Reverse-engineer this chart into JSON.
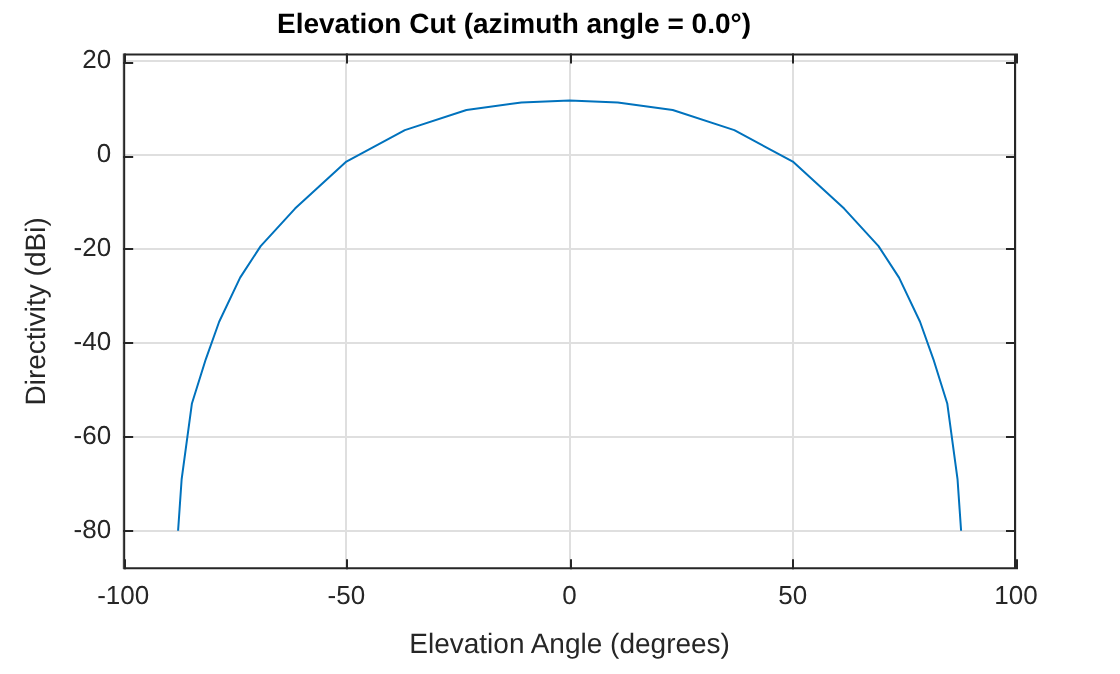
{
  "chart_data": {
    "type": "line",
    "title": "Elevation Cut (azimuth angle = 0.0°)",
    "xlabel": "Elevation Angle (degrees)",
    "ylabel": "Directivity (dBi)",
    "x": [
      -87.7,
      -86.9,
      -84.6,
      -81.5,
      -78.5,
      -73.8,
      -69.2,
      -61.5,
      -50,
      -36.9,
      -23.1,
      -10.8,
      0,
      10.8,
      23.1,
      36.9,
      50,
      61.5,
      69.2,
      73.8,
      78.5,
      81.5,
      84.6,
      86.9,
      87.7
    ],
    "series": [
      {
        "color": "#0072bd",
        "values": [
          -80,
          -69,
          -52.9,
          -43.5,
          -35.5,
          -26.1,
          -19.4,
          -11.4,
          -1.4,
          5.3,
          9.6,
          11.2,
          11.6,
          11.2,
          9.6,
          5.3,
          -1.4,
          -11.4,
          -19.4,
          -26.1,
          -35.5,
          -43.5,
          -52.9,
          -69,
          -80
        ]
      }
    ],
    "xlim": [
      -100,
      100
    ],
    "xticks": [
      -100,
      -50,
      0,
      50,
      100
    ],
    "ylim": [
      -88.2,
      21.6
    ],
    "yticks": [
      -80,
      -60,
      -40,
      -20,
      0,
      20
    ],
    "grid": true,
    "legend": false,
    "marker": "none",
    "line_style": "solid"
  }
}
